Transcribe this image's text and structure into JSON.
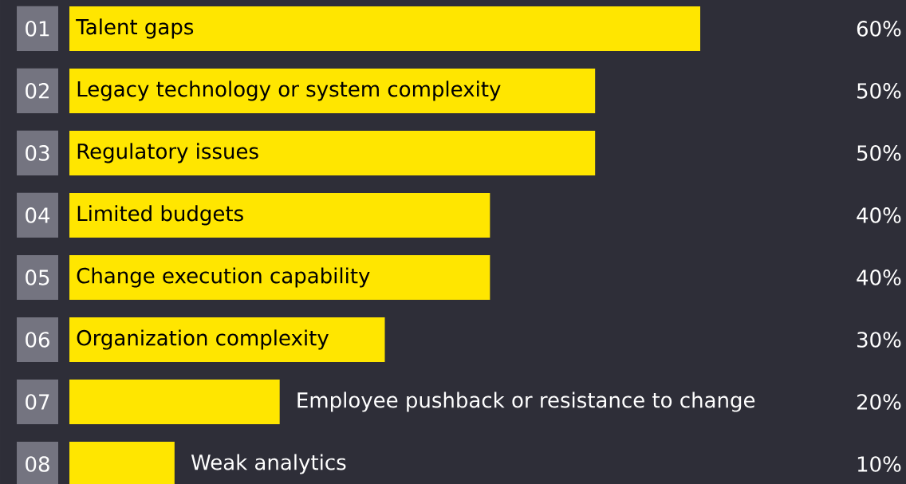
{
  "chart_data": {
    "type": "bar",
    "orientation": "horizontal",
    "categories": [
      "Talent gaps",
      "Legacy technology or system complexity",
      "Regulatory issues",
      "Limited budgets",
      "Change execution capability",
      "Organization complexity",
      "Employee pushback or resistance to change",
      "Weak analytics"
    ],
    "values": [
      60,
      50,
      50,
      40,
      40,
      30,
      20,
      10
    ],
    "value_labels": [
      "60%",
      "50%",
      "50%",
      "40%",
      "40%",
      "30%",
      "20%",
      "10%"
    ],
    "color": "#ffe600",
    "annotations": [
      "01",
      "02",
      "03",
      "04",
      "05",
      "06",
      "07",
      "08"
    ]
  }
}
